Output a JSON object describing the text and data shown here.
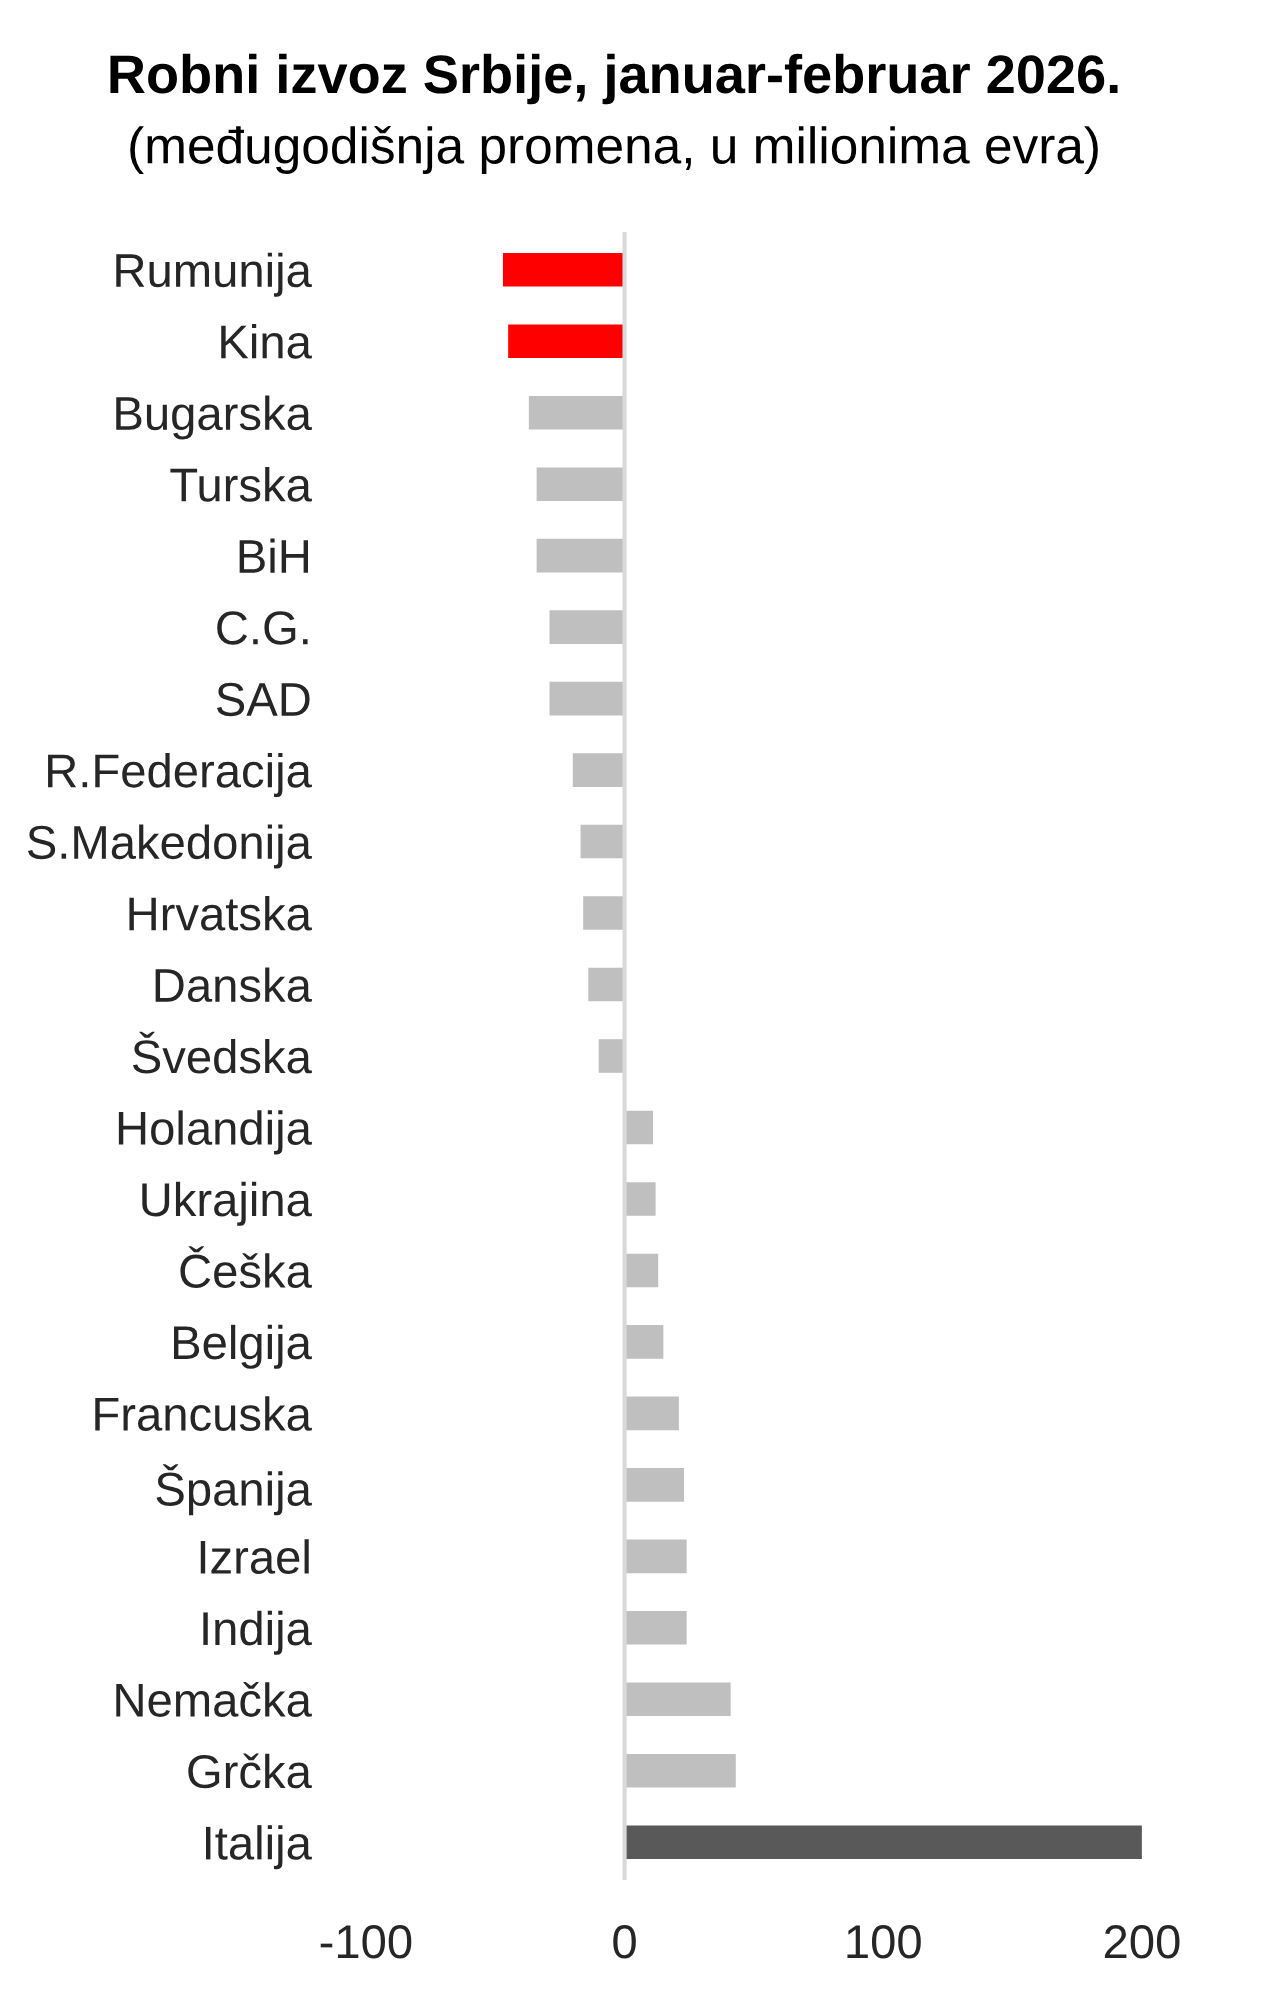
{
  "chart_data": {
    "type": "bar",
    "orientation": "horizontal",
    "title": "Robni izvoz Srbije, januar-februar 2026.",
    "subtitle": "(međugodišnja promena, u milionima evra)",
    "categories": [
      "Rumunija",
      "Kina",
      "Bugarska",
      "Turska",
      "BiH",
      "C.G.",
      "SAD",
      "R.Federacija",
      "S.Makedonija",
      "Hrvatska",
      "Danska",
      "Švedska",
      "Holandija",
      "Ukrajina",
      "Češka",
      "Belgija",
      "Francuska",
      "Španija",
      "Izrael",
      "Indija",
      "Nemačka",
      "Grčka",
      "Italija"
    ],
    "values": [
      -47,
      -45,
      -37,
      -34,
      -34,
      -29,
      -29,
      -20,
      -17,
      -16,
      -14,
      -10,
      11,
      12,
      13,
      15,
      21,
      23,
      24,
      24,
      41,
      43,
      200
    ],
    "colors": [
      "#ff0000",
      "#ff0000",
      "#bfbfbf",
      "#bfbfbf",
      "#bfbfbf",
      "#bfbfbf",
      "#bfbfbf",
      "#bfbfbf",
      "#bfbfbf",
      "#bfbfbf",
      "#bfbfbf",
      "#bfbfbf",
      "#bfbfbf",
      "#bfbfbf",
      "#bfbfbf",
      "#bfbfbf",
      "#bfbfbf",
      "#bfbfbf",
      "#bfbfbf",
      "#bfbfbf",
      "#bfbfbf",
      "#bfbfbf",
      "#595959"
    ],
    "xlim": [
      -100,
      200
    ],
    "xticks": [
      -100,
      0,
      100,
      200
    ]
  }
}
